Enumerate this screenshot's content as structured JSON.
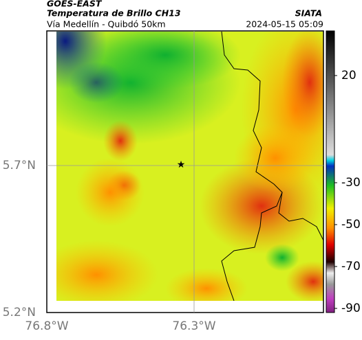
{
  "header": {
    "satellite": "GOES-EAST",
    "title": "Temperatura de Brillo CH13",
    "subtitle": "Vía Medellín - Quibdó 50km",
    "source": "SIATA",
    "datetime": "2024-05-15 05:09"
  },
  "map": {
    "lat_ticks": [
      "5.7°N",
      "5.2°N"
    ],
    "lon_ticks": [
      "76.8°W",
      "76.3°W"
    ]
  },
  "colorbar": {
    "ticks": [
      20,
      -30,
      -50,
      -70,
      -90
    ]
  }
}
